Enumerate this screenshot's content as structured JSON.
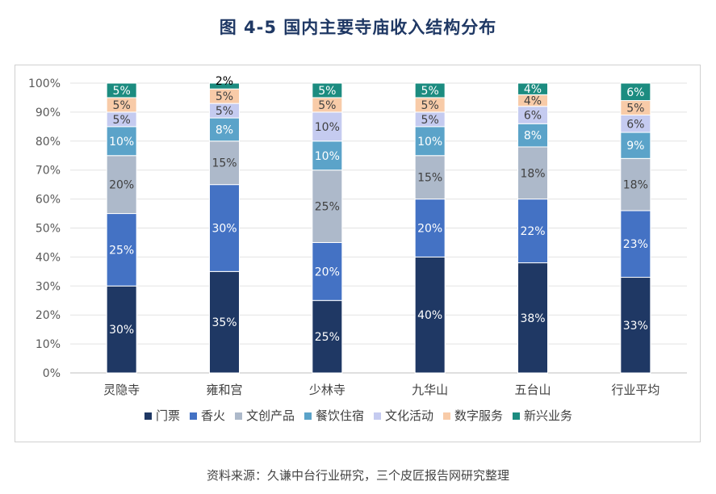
{
  "title": "图 4-5  国内主要寺庙收入结构分布",
  "source": "资料来源：久谦中台行业研究，三个皮匠报告网研究整理",
  "chart_data": {
    "type": "bar",
    "stacked": true,
    "categories": [
      "灵隐寺",
      "雍和宫",
      "少林寺",
      "九华山",
      "五台山",
      "行业平均"
    ],
    "ylim": [
      0,
      100
    ],
    "y_ticks": [
      "0%",
      "10%",
      "20%",
      "30%",
      "40%",
      "50%",
      "60%",
      "70%",
      "80%",
      "90%",
      "100%"
    ],
    "grid": true,
    "legend_position": "bottom",
    "series": [
      {
        "name": "门票",
        "color": "#1f3864",
        "label_color": "#ffffff",
        "values": [
          30,
          35,
          25,
          40,
          38,
          33
        ]
      },
      {
        "name": "香火",
        "color": "#4472c4",
        "label_color": "#ffffff",
        "values": [
          25,
          30,
          20,
          20,
          22,
          23
        ]
      },
      {
        "name": "文创产品",
        "color": "#adb9ca",
        "label_color": "#404040",
        "values": [
          20,
          15,
          25,
          15,
          18,
          18
        ]
      },
      {
        "name": "餐饮住宿",
        "color": "#5ba3c9",
        "label_color": "#ffffff",
        "values": [
          10,
          8,
          10,
          10,
          8,
          9
        ]
      },
      {
        "name": "文化活动",
        "color": "#c5cbf0",
        "label_color": "#404040",
        "values": [
          5,
          5,
          10,
          5,
          6,
          6
        ]
      },
      {
        "name": "数字服务",
        "color": "#f8cba8",
        "label_color": "#404040",
        "values": [
          5,
          5,
          5,
          5,
          4,
          5
        ]
      },
      {
        "name": "新兴业务",
        "color": "#1c8c80",
        "label_color": "#ffffff",
        "values": [
          5,
          2,
          5,
          5,
          4,
          6
        ]
      }
    ]
  }
}
